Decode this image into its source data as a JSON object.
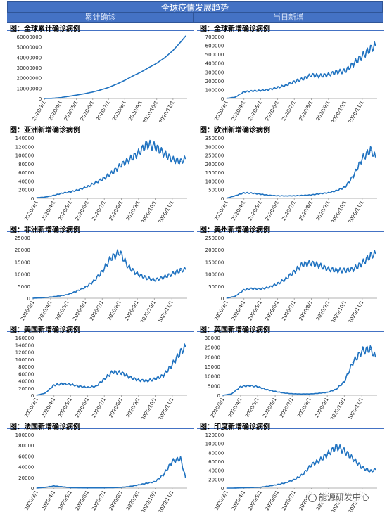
{
  "header": {
    "title": "全球疫情发展趋势",
    "left_label": "累计确诊",
    "right_label": "当日新增"
  },
  "watermark": "能源研发中心",
  "chart_data": [
    {
      "type": "line",
      "title": "图：全球累计确诊病例",
      "categories": [
        "2020/3/1",
        "2020/4/1",
        "2020/5/1",
        "2020/6/1",
        "2020/7/1",
        "2020/8/1",
        "2020/9/1",
        "2020/10/1",
        "2020/11/1"
      ],
      "ylim": [
        0,
        60000000
      ],
      "yticks": [
        0,
        10000000,
        20000000,
        30000000,
        40000000,
        50000000,
        60000000
      ],
      "color": "#1f72c0",
      "x": [
        "2020/3/1",
        "2020/3/16",
        "2020/4/1",
        "2020/4/16",
        "2020/5/1",
        "2020/5/16",
        "2020/6/1",
        "2020/6/16",
        "2020/7/1",
        "2020/7/16",
        "2020/8/1",
        "2020/8/16",
        "2020/9/1",
        "2020/9/16",
        "2020/10/1",
        "2020/10/16",
        "2020/11/1",
        "2020/11/16",
        "2020/11/25"
      ],
      "values": [
        90000,
        180000,
        900000,
        2100000,
        3300000,
        4600000,
        6300000,
        8300000,
        10700000,
        13800000,
        17600000,
        21700000,
        25600000,
        30000000,
        34200000,
        39400000,
        46600000,
        55000000,
        60500000
      ]
    },
    {
      "type": "line",
      "title": "图：全球新增确诊病例",
      "categories": [
        "2020/3/1",
        "2020/4/1",
        "2020/5/1",
        "2020/6/1",
        "2020/7/1",
        "2020/8/1",
        "2020/9/1",
        "2020/10/1",
        "2020/11/1"
      ],
      "ylim": [
        0,
        700000
      ],
      "yticks": [
        0,
        100000,
        200000,
        300000,
        400000,
        500000,
        600000,
        700000
      ],
      "color": "#1f72c0",
      "x": [
        "2020/3/1",
        "2020/3/16",
        "2020/4/1",
        "2020/4/16",
        "2020/5/1",
        "2020/5/16",
        "2020/6/1",
        "2020/6/16",
        "2020/7/1",
        "2020/7/16",
        "2020/8/1",
        "2020/8/16",
        "2020/9/1",
        "2020/9/16",
        "2020/10/1",
        "2020/10/16",
        "2020/11/1",
        "2020/11/16",
        "2020/11/25"
      ],
      "values": [
        2000,
        15000,
        75000,
        85000,
        90000,
        100000,
        125000,
        150000,
        190000,
        220000,
        265000,
        255000,
        270000,
        300000,
        310000,
        390000,
        480000,
        560000,
        600000
      ]
    },
    {
      "type": "line",
      "title": "图：亚洲新增确诊病例",
      "categories": [
        "2020/3/1",
        "2020/4/1",
        "2020/5/1",
        "2020/6/1",
        "2020/7/1",
        "2020/8/1",
        "2020/9/1",
        "2020/10/1",
        "2020/11/1"
      ],
      "ylim": [
        0,
        140000
      ],
      "yticks": [
        0,
        20000,
        40000,
        60000,
        80000,
        100000,
        120000,
        140000
      ],
      "color": "#1f72c0",
      "x": [
        "2020/3/1",
        "2020/3/16",
        "2020/4/1",
        "2020/4/16",
        "2020/5/1",
        "2020/5/16",
        "2020/6/1",
        "2020/6/16",
        "2020/7/1",
        "2020/7/16",
        "2020/8/1",
        "2020/8/16",
        "2020/9/1",
        "2020/9/16",
        "2020/10/1",
        "2020/10/16",
        "2020/11/1",
        "2020/11/16",
        "2020/11/25"
      ],
      "values": [
        1500,
        3000,
        7000,
        12000,
        15000,
        20000,
        27000,
        37000,
        47000,
        60000,
        78000,
        90000,
        105000,
        125000,
        120000,
        105000,
        90000,
        85000,
        92000
      ]
    },
    {
      "type": "line",
      "title": "图：欧洲新增确诊病例",
      "categories": [
        "2020/3/1",
        "2020/4/1",
        "2020/5/1",
        "2020/6/1",
        "2020/7/1",
        "2020/8/1",
        "2020/9/1",
        "2020/10/1",
        "2020/11/1"
      ],
      "ylim": [
        0,
        350000
      ],
      "yticks": [
        0,
        50000,
        100000,
        150000,
        200000,
        250000,
        300000,
        350000
      ],
      "color": "#1f72c0",
      "x": [
        "2020/3/1",
        "2020/3/16",
        "2020/4/1",
        "2020/4/16",
        "2020/5/1",
        "2020/5/16",
        "2020/6/1",
        "2020/6/16",
        "2020/7/1",
        "2020/7/16",
        "2020/8/1",
        "2020/8/16",
        "2020/9/1",
        "2020/9/16",
        "2020/10/1",
        "2020/10/16",
        "2020/11/1",
        "2020/11/16",
        "2020/11/25"
      ],
      "values": [
        1000,
        15000,
        32000,
        30000,
        24000,
        18000,
        15000,
        14000,
        15000,
        17000,
        20000,
        27000,
        32000,
        45000,
        65000,
        130000,
        230000,
        280000,
        240000
      ]
    },
    {
      "type": "line",
      "title": "图：非洲新增确诊病例",
      "categories": [
        "2020/3/1",
        "2020/4/1",
        "2020/5/1",
        "2020/6/1",
        "2020/7/1",
        "2020/8/1",
        "2020/9/1",
        "2020/10/1",
        "2020/11/1"
      ],
      "ylim": [
        0,
        25000
      ],
      "yticks": [
        0,
        5000,
        10000,
        15000,
        20000,
        25000
      ],
      "color": "#1f72c0",
      "x": [
        "2020/3/1",
        "2020/3/16",
        "2020/4/1",
        "2020/4/16",
        "2020/5/1",
        "2020/5/16",
        "2020/6/1",
        "2020/6/16",
        "2020/7/1",
        "2020/7/16",
        "2020/8/1",
        "2020/8/16",
        "2020/9/1",
        "2020/9/16",
        "2020/10/1",
        "2020/10/16",
        "2020/11/1",
        "2020/11/16",
        "2020/11/25"
      ],
      "values": [
        10,
        150,
        500,
        900,
        1500,
        2800,
        4500,
        7000,
        11000,
        16500,
        19000,
        13000,
        10000,
        8500,
        7500,
        8500,
        10000,
        11500,
        12000
      ]
    },
    {
      "type": "line",
      "title": "图：美州新增确诊病例",
      "categories": [
        "2020/3/1",
        "2020/4/1",
        "2020/5/1",
        "2020/6/1",
        "2020/7/1",
        "2020/8/1",
        "2020/9/1",
        "2020/10/1",
        "2020/11/1"
      ],
      "ylim": [
        0,
        250000
      ],
      "yticks": [
        0,
        50000,
        100000,
        150000,
        200000,
        250000
      ],
      "color": "#1f72c0",
      "x": [
        "2020/3/1",
        "2020/3/16",
        "2020/4/1",
        "2020/4/16",
        "2020/5/1",
        "2020/5/16",
        "2020/6/1",
        "2020/6/16",
        "2020/7/1",
        "2020/7/16",
        "2020/8/1",
        "2020/8/16",
        "2020/9/1",
        "2020/9/16",
        "2020/10/1",
        "2020/10/16",
        "2020/11/1",
        "2020/11/16",
        "2020/11/25"
      ],
      "values": [
        200,
        8000,
        35000,
        40000,
        38000,
        45000,
        60000,
        80000,
        110000,
        140000,
        145000,
        135000,
        120000,
        115000,
        115000,
        120000,
        145000,
        175000,
        185000
      ]
    },
    {
      "type": "line",
      "title": "图：美国新增确诊病例",
      "categories": [
        "2020/3/1",
        "2020/4/1",
        "2020/5/1",
        "2020/6/1",
        "2020/7/1",
        "2020/8/1",
        "2020/9/1",
        "2020/10/1",
        "2020/11/1"
      ],
      "ylim": [
        0,
        160000
      ],
      "yticks": [
        0,
        20000,
        40000,
        60000,
        80000,
        100000,
        120000,
        140000,
        160000
      ],
      "color": "#1f72c0",
      "x": [
        "2020/3/1",
        "2020/3/16",
        "2020/4/1",
        "2020/4/16",
        "2020/5/1",
        "2020/5/16",
        "2020/6/1",
        "2020/6/16",
        "2020/7/1",
        "2020/7/16",
        "2020/8/1",
        "2020/8/16",
        "2020/9/1",
        "2020/9/16",
        "2020/10/1",
        "2020/10/16",
        "2020/11/1",
        "2020/11/16",
        "2020/11/25"
      ],
      "values": [
        100,
        6000,
        28000,
        32000,
        30000,
        25000,
        22000,
        25000,
        45000,
        65000,
        62000,
        50000,
        42000,
        40000,
        45000,
        55000,
        85000,
        120000,
        135000
      ]
    },
    {
      "type": "line",
      "title": "图：英国新增确诊病例",
      "categories": [
        "2020/3/1",
        "2020/4/1",
        "2020/5/1",
        "2020/6/1",
        "2020/7/1",
        "2020/8/1",
        "2020/9/1",
        "2020/10/1",
        "2020/11/1"
      ],
      "ylim": [
        0,
        30000
      ],
      "yticks": [
        0,
        5000,
        10000,
        15000,
        20000,
        25000,
        30000
      ],
      "color": "#1f72c0",
      "x": [
        "2020/3/1",
        "2020/3/16",
        "2020/4/1",
        "2020/4/16",
        "2020/5/1",
        "2020/5/16",
        "2020/6/1",
        "2020/6/16",
        "2020/7/1",
        "2020/7/16",
        "2020/8/1",
        "2020/8/16",
        "2020/9/1",
        "2020/9/16",
        "2020/10/1",
        "2020/10/16",
        "2020/11/1",
        "2020/11/16",
        "2020/11/25"
      ],
      "values": [
        20,
        700,
        4500,
        5000,
        4500,
        3000,
        2000,
        1200,
        800,
        650,
        700,
        1000,
        1500,
        3000,
        7000,
        17000,
        23000,
        24000,
        20000
      ]
    },
    {
      "type": "line",
      "title": "图：法国新增确诊病例",
      "categories": [
        "2020/3/1",
        "2020/4/1",
        "2020/5/1",
        "2020/6/1",
        "2020/7/1",
        "2020/8/1",
        "2020/9/1",
        "2020/10/1",
        "2020/11/1"
      ],
      "ylim": [
        0,
        100000
      ],
      "yticks": [
        0,
        20000,
        40000,
        60000,
        80000,
        100000
      ],
      "color": "#1f72c0",
      "x": [
        "2020/3/1",
        "2020/3/16",
        "2020/4/1",
        "2020/4/16",
        "2020/5/1",
        "2020/5/16",
        "2020/6/1",
        "2020/6/16",
        "2020/7/1",
        "2020/7/16",
        "2020/8/1",
        "2020/8/16",
        "2020/9/1",
        "2020/9/16",
        "2020/10/1",
        "2020/10/16",
        "2020/11/1",
        "2020/11/16",
        "2020/11/25"
      ],
      "values": [
        50,
        1500,
        4000,
        2500,
        800,
        500,
        400,
        400,
        500,
        800,
        1500,
        3000,
        6000,
        9000,
        12000,
        25000,
        50000,
        55000,
        20000
      ]
    },
    {
      "type": "line",
      "title": "图：印度新增确诊病例",
      "categories": [
        "2020/3/1",
        "2020/4/1",
        "2020/5/1",
        "2020/6/1",
        "2020/7/1",
        "2020/8/1",
        "2020/9/1",
        "2020/10/1",
        "2020/11/1"
      ],
      "ylim": [
        0,
        120000
      ],
      "yticks": [
        0,
        20000,
        40000,
        60000,
        80000,
        100000,
        120000
      ],
      "color": "#1f72c0",
      "x": [
        "2020/3/1",
        "2020/3/16",
        "2020/4/1",
        "2020/4/16",
        "2020/5/1",
        "2020/5/16",
        "2020/6/1",
        "2020/6/16",
        "2020/7/1",
        "2020/7/16",
        "2020/8/1",
        "2020/8/16",
        "2020/9/1",
        "2020/9/16",
        "2020/10/1",
        "2020/10/16",
        "2020/11/1",
        "2020/11/16",
        "2020/11/25"
      ],
      "values": [
        5,
        100,
        800,
        1300,
        2000,
        4500,
        8000,
        12000,
        19000,
        30000,
        52000,
        62000,
        78000,
        93000,
        82000,
        65000,
        46000,
        38000,
        42000
      ]
    }
  ]
}
